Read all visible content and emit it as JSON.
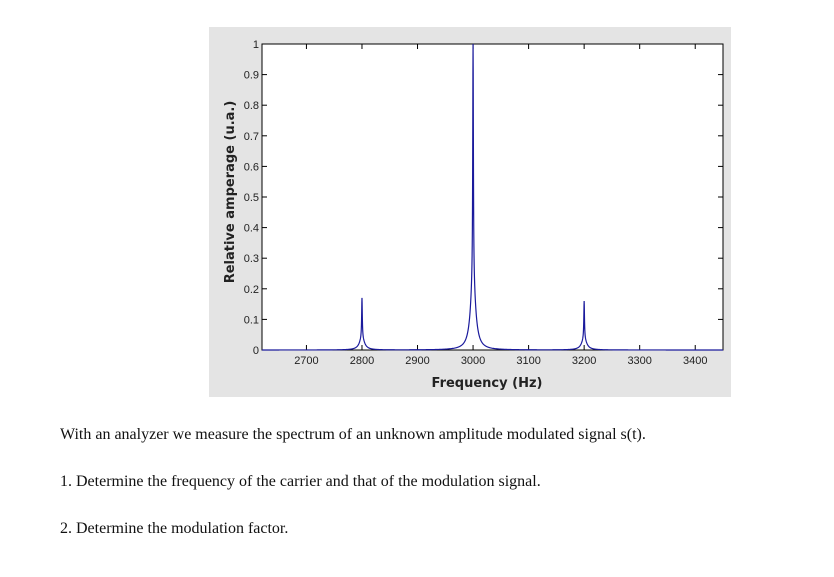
{
  "chart_data": {
    "type": "line",
    "title": "",
    "xlabel": "Frequency (Hz)",
    "ylabel": "Relative amperage (u.a.)",
    "xlim": [
      2620,
      3450
    ],
    "ylim": [
      0,
      1
    ],
    "xticks": [
      2700,
      2800,
      2900,
      3000,
      3100,
      3200,
      3300,
      3400
    ],
    "xtick_labels": [
      "2700",
      "2800",
      "2900",
      "3000",
      "3100",
      "3200",
      "3300",
      "3400"
    ],
    "yticks": [
      0,
      0.1,
      0.2,
      0.3,
      0.4,
      0.5,
      0.6,
      0.7,
      0.8,
      0.9,
      1
    ],
    "ytick_labels": [
      "0",
      "0.1",
      "0.2",
      "0.3",
      "0.4",
      "0.5",
      "0.6",
      "0.7",
      "0.8",
      "0.9",
      "1"
    ],
    "grid": false,
    "line_color": "#1a1a9c",
    "peaks": [
      {
        "x": 2800,
        "y": 0.17
      },
      {
        "x": 3000,
        "y": 1.0
      },
      {
        "x": 3200,
        "y": 0.16
      }
    ]
  },
  "text": {
    "intro": "With an analyzer we measure the spectrum of an unknown amplitude modulated signal s(t).",
    "q1": "1. Determine the frequency of the carrier and that of the modulation signal.",
    "q2": "2. Determine the modulation factor."
  }
}
